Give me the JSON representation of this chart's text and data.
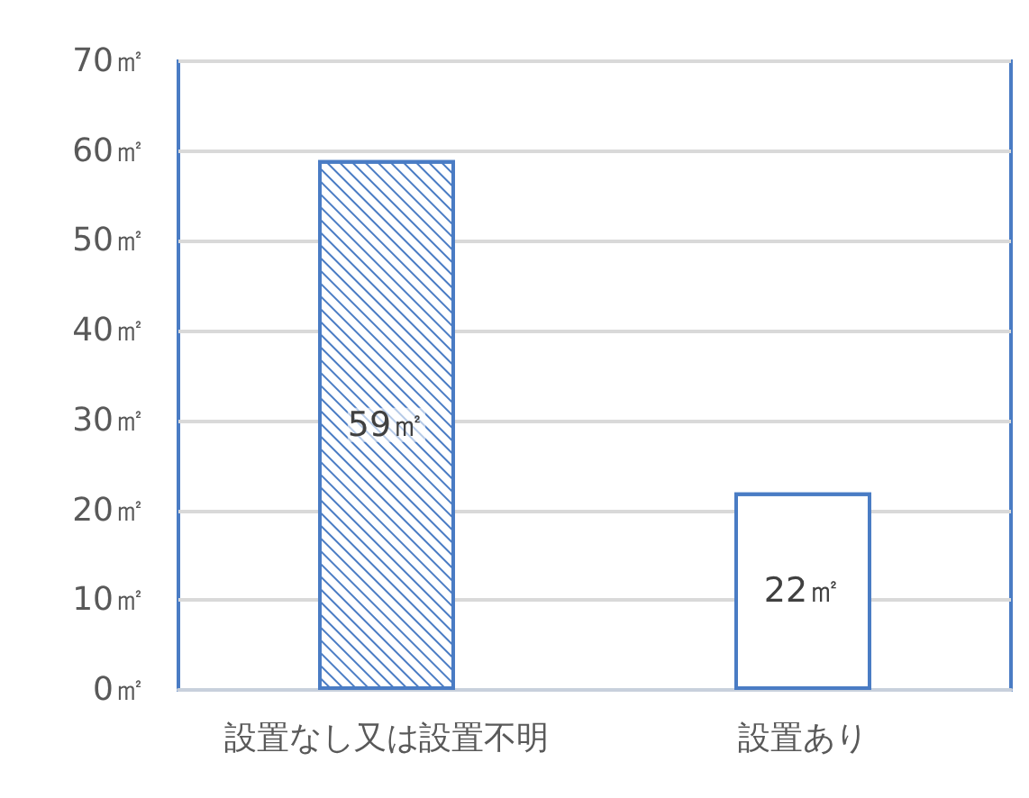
{
  "chart_data": {
    "type": "bar",
    "categories": [
      "設置なし又は設置不明",
      "設置あり"
    ],
    "values": [
      59,
      22
    ],
    "colors": [
      "#4a7cc4",
      "#4a7cc4"
    ],
    "value_labels": [
      "59㎡",
      "22㎡"
    ],
    "ylim": [
      0,
      70
    ],
    "yticks": [
      {
        "value": 0,
        "label": "0㎡"
      },
      {
        "value": 10,
        "label": "10㎡"
      },
      {
        "value": 20,
        "label": "20㎡"
      },
      {
        "value": 30,
        "label": "30㎡"
      },
      {
        "value": 40,
        "label": "40㎡"
      },
      {
        "value": 50,
        "label": "50㎡"
      },
      {
        "value": 60,
        "label": "60㎡"
      },
      {
        "value": 70,
        "label": "70㎡"
      }
    ],
    "grid": "y"
  }
}
